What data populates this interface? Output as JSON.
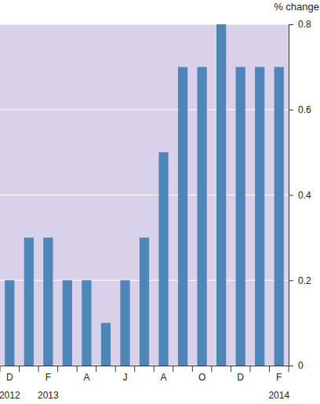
{
  "chart_data": {
    "type": "bar",
    "y_label": "% change",
    "categories": [
      "D",
      null,
      "F",
      null,
      "A",
      null,
      "J",
      null,
      "A",
      null,
      "O",
      null,
      "D",
      null,
      "F"
    ],
    "years": [
      "2012",
      null,
      "2013",
      null,
      null,
      null,
      null,
      null,
      null,
      null,
      null,
      null,
      null,
      null,
      "2014"
    ],
    "values": [
      0.2,
      0.3,
      0.3,
      0.2,
      0.2,
      0.1,
      0.2,
      0.3,
      0.5,
      0.7,
      0.7,
      0.8,
      0.7,
      0.7,
      0.7
    ],
    "color": "#4f86ba",
    "ylim": [
      0,
      0.8
    ],
    "yticks": [
      0,
      0.2,
      0.4,
      0.6,
      0.8
    ],
    "grid": true
  }
}
